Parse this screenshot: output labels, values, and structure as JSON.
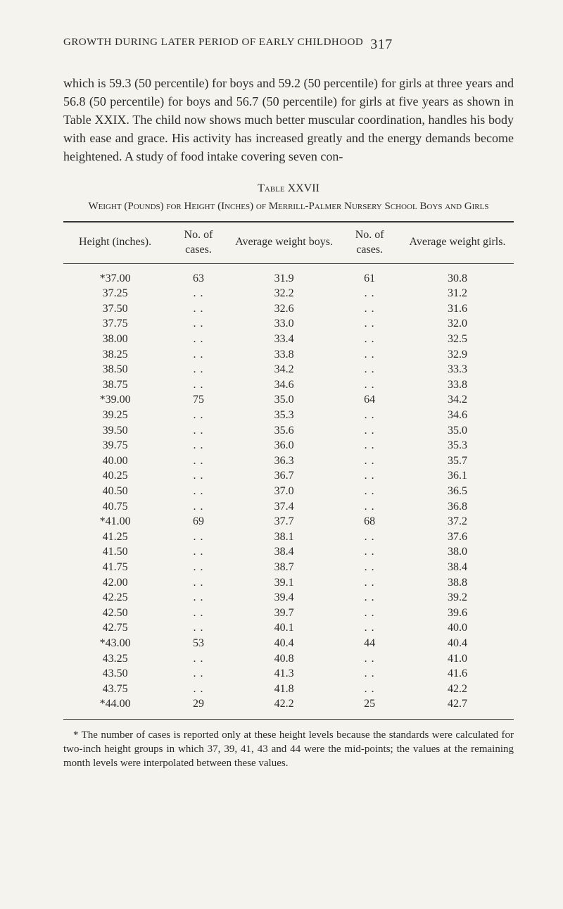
{
  "header": {
    "running_title": "GROWTH DURING LATER PERIOD OF EARLY CHILDHOOD",
    "page_number": "317"
  },
  "paragraph": "which is 59.3 (50 percentile) for boys and 59.2 (50 percentile) for girls at three years and 56.8 (50 percentile) for boys and 56.7 (50 percentile) for girls at five years as shown in Table XXIX.   The child now shows much better muscular coordination, handles his body with ease and grace.   His activity has increased greatly and the energy demands become heightened.   A study of food intake covering seven con-",
  "table": {
    "caption": "Table XXVII",
    "subcaption": "Weight (Pounds) for Height (Inches) of Merrill-Palmer Nursery School Boys and Girls",
    "columns": [
      "Height (inches).",
      "No. of cases.",
      "Average weight boys.",
      "No. of cases.",
      "Average weight girls."
    ],
    "rows": [
      [
        "*37.00",
        "63",
        "31.9",
        "61",
        "30.8"
      ],
      [
        "37.25",
        "..",
        "32.2",
        "..",
        "31.2"
      ],
      [
        "37.50",
        "..",
        "32.6",
        "..",
        "31.6"
      ],
      [
        "37.75",
        "..",
        "33.0",
        "..",
        "32.0"
      ],
      [
        "38.00",
        "..",
        "33.4",
        "..",
        "32.5"
      ],
      [
        "38.25",
        "..",
        "33.8",
        "..",
        "32.9"
      ],
      [
        "38.50",
        "..",
        "34.2",
        "..",
        "33.3"
      ],
      [
        "38.75",
        "..",
        "34.6",
        "..",
        "33.8"
      ],
      [
        "*39.00",
        "75",
        "35.0",
        "64",
        "34.2"
      ],
      [
        "39.25",
        "..",
        "35.3",
        "..",
        "34.6"
      ],
      [
        "39.50",
        "..",
        "35.6",
        "..",
        "35.0"
      ],
      [
        "39.75",
        "..",
        "36.0",
        "..",
        "35.3"
      ],
      [
        "40.00",
        "..",
        "36.3",
        "..",
        "35.7"
      ],
      [
        "40.25",
        "..",
        "36.7",
        "..",
        "36.1"
      ],
      [
        "40.50",
        "..",
        "37.0",
        "..",
        "36.5"
      ],
      [
        "40.75",
        "..",
        "37.4",
        "..",
        "36.8"
      ],
      [
        "*41.00",
        "69",
        "37.7",
        "68",
        "37.2"
      ],
      [
        "41.25",
        "..",
        "38.1",
        "..",
        "37.6"
      ],
      [
        "41.50",
        "..",
        "38.4",
        "..",
        "38.0"
      ],
      [
        "41.75",
        "..",
        "38.7",
        "..",
        "38.4"
      ],
      [
        "42.00",
        "..",
        "39.1",
        "..",
        "38.8"
      ],
      [
        "42.25",
        "..",
        "39.4",
        "..",
        "39.2"
      ],
      [
        "42.50",
        "..",
        "39.7",
        "..",
        "39.6"
      ],
      [
        "42.75",
        "..",
        "40.1",
        "..",
        "40.0"
      ],
      [
        "*43.00",
        "53",
        "40.4",
        "44",
        "40.4"
      ],
      [
        "43.25",
        "..",
        "40.8",
        "..",
        "41.0"
      ],
      [
        "43.50",
        "..",
        "41.3",
        "..",
        "41.6"
      ],
      [
        "43.75",
        "..",
        "41.8",
        "..",
        "42.2"
      ],
      [
        "*44.00",
        "29",
        "42.2",
        "25",
        "42.7"
      ]
    ],
    "column_classes": [
      "col-height",
      "col-no1",
      "col-wb",
      "col-no2",
      "col-wg"
    ]
  },
  "footnote": "* The number of cases is reported only at these height levels because the standards were calculated for two-inch height groups in which 37, 39, 41, 43 and 44 were the mid-points; the values at the remaining month levels were interpolated between these values.",
  "colors": {
    "background": "#f5f3ed",
    "text": "#2b2b2b",
    "rule": "#333333"
  },
  "typography": {
    "body_fontsize": 18,
    "table_fontsize": 16,
    "footnote_fontsize": 15,
    "font_family": "Times New Roman / serif"
  }
}
